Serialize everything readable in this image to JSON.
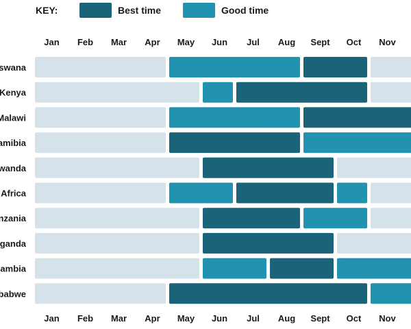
{
  "colors": {
    "best": "#1a6378",
    "good": "#2192af",
    "none": "#d6e2e9"
  },
  "chart_data": {
    "type": "heatmap",
    "legend": {
      "title": "KEY:",
      "placement": "top-left",
      "items": [
        {
          "key": "best",
          "label": "Best time"
        },
        {
          "key": "good",
          "label": "Good time"
        }
      ]
    },
    "months": [
      "Jan",
      "Feb",
      "Mar",
      "Apr",
      "May",
      "Jun",
      "Jul",
      "Aug",
      "Sept",
      "Oct",
      "Nov"
    ],
    "rows": [
      {
        "label": "swana",
        "values": [
          "none",
          "none",
          "none",
          "none",
          "good",
          "good",
          "good",
          "good",
          "best",
          "best",
          "none"
        ]
      },
      {
        "label": "Kenya",
        "values": [
          "none",
          "none",
          "none",
          "none",
          "none",
          "good",
          "best",
          "best",
          "best",
          "best",
          "none"
        ]
      },
      {
        "label": "Malawi",
        "values": [
          "none",
          "none",
          "none",
          "none",
          "good",
          "good",
          "good",
          "good",
          "best",
          "best",
          "best"
        ]
      },
      {
        "label": "amibia",
        "values": [
          "none",
          "none",
          "none",
          "none",
          "best",
          "best",
          "best",
          "best",
          "good",
          "good",
          "good"
        ]
      },
      {
        "label": "wanda",
        "values": [
          "none",
          "none",
          "none",
          "none",
          "none",
          "best",
          "best",
          "best",
          "best",
          "none",
          "none"
        ]
      },
      {
        "label": "Africa",
        "values": [
          "none",
          "none",
          "none",
          "none",
          "good",
          "good",
          "best",
          "best",
          "best",
          "good",
          "none"
        ]
      },
      {
        "label": "nzania",
        "values": [
          "none",
          "none",
          "none",
          "none",
          "none",
          "best",
          "best",
          "best",
          "good",
          "good",
          "none"
        ]
      },
      {
        "label": "ganda",
        "values": [
          "none",
          "none",
          "none",
          "none",
          "none",
          "best",
          "best",
          "best",
          "best",
          "none",
          "none"
        ]
      },
      {
        "label": "ambia",
        "values": [
          "none",
          "none",
          "none",
          "none",
          "none",
          "good",
          "good",
          "best",
          "best",
          "good",
          "good"
        ]
      },
      {
        "label": "babwe",
        "values": [
          "none",
          "none",
          "none",
          "none",
          "best",
          "best",
          "best",
          "best",
          "best",
          "best",
          "good"
        ]
      }
    ]
  }
}
